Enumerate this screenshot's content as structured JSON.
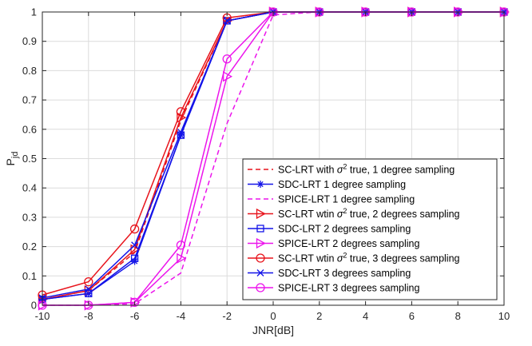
{
  "chart_data": {
    "type": "line",
    "xlabel": "JNR[dB]",
    "ylabel_main": "P",
    "ylabel_sub": "jd",
    "xlim": [
      -10,
      10
    ],
    "ylim": [
      0,
      1
    ],
    "x_ticks": [
      "-10",
      "-8",
      "-6",
      "-4",
      "-2",
      "0",
      "2",
      "4",
      "6",
      "8",
      "10"
    ],
    "y_ticks": [
      "0",
      "0.1",
      "0.2",
      "0.3",
      "0.4",
      "0.5",
      "0.6",
      "0.7",
      "0.8",
      "0.9",
      "1"
    ],
    "grid": true,
    "legend_position": "bottom-right",
    "x": [
      -10,
      -8,
      -6,
      -4,
      -2,
      0,
      2,
      4,
      6,
      8,
      10
    ],
    "series": [
      {
        "name_before": "SC-LRT with ",
        "name_after": " true, 1 degree sampling",
        "color": "#e8141c",
        "dash": "dashed",
        "marker": "none",
        "values": [
          0.02,
          0.05,
          0.18,
          0.63,
          0.97,
          1,
          1,
          1,
          1,
          1,
          1
        ]
      },
      {
        "name": "SDC-LRT 1 degree sampling",
        "color": "#1414e8",
        "dash": "solid",
        "marker": "asterisk",
        "values": [
          0.02,
          0.04,
          0.15,
          0.58,
          0.97,
          1,
          1,
          1,
          1,
          1,
          1
        ]
      },
      {
        "name": "SPICE-LRT 1 degree sampling",
        "color": "#ec14ec",
        "dash": "dashed",
        "marker": "none",
        "values": [
          0.0,
          0.0,
          0.005,
          0.11,
          0.62,
          0.99,
          1,
          1,
          1,
          1,
          1
        ]
      },
      {
        "name_before": "SC-LRT wtin ",
        "name_after": " true, 2 degrees sampling",
        "color": "#e8141c",
        "dash": "solid",
        "marker": "triangle-right",
        "values": [
          0.02,
          0.05,
          0.19,
          0.64,
          0.97,
          1,
          1,
          1,
          1,
          1,
          1
        ]
      },
      {
        "name": "SDC-LRT 2 degrees sampling",
        "color": "#1414e8",
        "dash": "solid",
        "marker": "square",
        "values": [
          0.02,
          0.04,
          0.16,
          0.58,
          0.97,
          1,
          1,
          1,
          1,
          1,
          1
        ]
      },
      {
        "name": "SPICE-LRT 2 degrees sampling",
        "color": "#ec14ec",
        "dash": "solid",
        "marker": "triangle-right",
        "values": [
          0.0,
          0.0,
          0.01,
          0.16,
          0.78,
          1,
          1,
          1,
          1,
          1,
          1
        ]
      },
      {
        "name_before": "SC-LRT wtin ",
        "name_after": " true, 3 degrees sampling",
        "color": "#e8141c",
        "dash": "solid",
        "marker": "circle",
        "values": [
          0.035,
          0.08,
          0.26,
          0.66,
          0.98,
          1,
          1,
          1,
          1,
          1,
          1
        ]
      },
      {
        "name": "SDC-LRT 3 degrees sampling",
        "color": "#1414e8",
        "dash": "solid",
        "marker": "x",
        "values": [
          0.025,
          0.055,
          0.205,
          0.59,
          0.97,
          1,
          1,
          1,
          1,
          1,
          1
        ]
      },
      {
        "name": "SPICE-LRT 3 degrees sampling",
        "color": "#ec14ec",
        "dash": "solid",
        "marker": "circle",
        "values": [
          0.0,
          0.0,
          0.01,
          0.205,
          0.84,
          1,
          1,
          1,
          1,
          1,
          1
        ]
      }
    ],
    "sigma_symbol": "σ",
    "sigma_exp": "2"
  }
}
